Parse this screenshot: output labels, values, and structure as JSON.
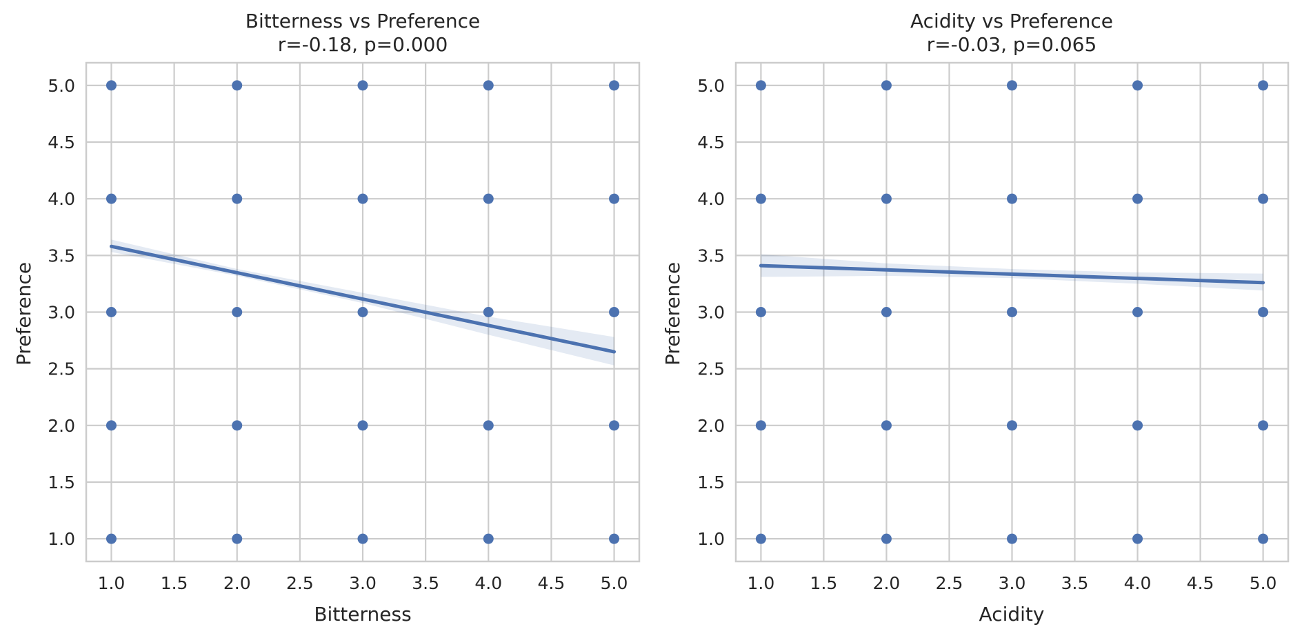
{
  "figure": {
    "panels_count": 2
  },
  "colors": {
    "point": "#4c72b0",
    "line": "#4c72b0",
    "band": "#4c72b0",
    "grid": "#cccccc",
    "text": "#262626",
    "background": "#ffffff"
  },
  "chart_data": [
    {
      "type": "scatter",
      "title": "Bitterness vs Preference",
      "subtitle": "r=-0.18, p=0.000",
      "xlabel": "Bitterness",
      "ylabel": "Preference",
      "xlim": [
        0.8,
        5.2
      ],
      "ylim": [
        0.8,
        5.2
      ],
      "xticks": [
        1.0,
        1.5,
        2.0,
        2.5,
        3.0,
        3.5,
        4.0,
        4.5,
        5.0
      ],
      "yticks": [
        1.0,
        1.5,
        2.0,
        2.5,
        3.0,
        3.5,
        4.0,
        4.5,
        5.0
      ],
      "grid": true,
      "legend": "none",
      "points": [
        [
          1,
          1
        ],
        [
          1,
          2
        ],
        [
          1,
          3
        ],
        [
          1,
          4
        ],
        [
          1,
          5
        ],
        [
          2,
          1
        ],
        [
          2,
          2
        ],
        [
          2,
          3
        ],
        [
          2,
          4
        ],
        [
          2,
          5
        ],
        [
          3,
          1
        ],
        [
          3,
          2
        ],
        [
          3,
          3
        ],
        [
          3,
          4
        ],
        [
          3,
          5
        ],
        [
          4,
          1
        ],
        [
          4,
          2
        ],
        [
          4,
          3
        ],
        [
          4,
          4
        ],
        [
          4,
          5
        ],
        [
          5,
          1
        ],
        [
          5,
          2
        ],
        [
          5,
          3
        ],
        [
          5,
          4
        ],
        [
          5,
          5
        ]
      ],
      "regression": {
        "x": [
          1.0,
          5.0
        ],
        "y": [
          3.58,
          2.65
        ]
      },
      "confidence_band": {
        "x": [
          1.0,
          2.0,
          3.0,
          4.0,
          5.0
        ],
        "lower": [
          3.53,
          3.32,
          3.08,
          2.8,
          2.53
        ],
        "upper": [
          3.64,
          3.38,
          3.17,
          2.96,
          2.78
        ]
      }
    },
    {
      "type": "scatter",
      "title": "Acidity vs Preference",
      "subtitle": "r=-0.03, p=0.065",
      "xlabel": "Acidity",
      "ylabel": "Preference",
      "xlim": [
        0.8,
        5.2
      ],
      "ylim": [
        0.8,
        5.2
      ],
      "xticks": [
        1.0,
        1.5,
        2.0,
        2.5,
        3.0,
        3.5,
        4.0,
        4.5,
        5.0
      ],
      "yticks": [
        1.0,
        1.5,
        2.0,
        2.5,
        3.0,
        3.5,
        4.0,
        4.5,
        5.0
      ],
      "grid": true,
      "legend": "none",
      "points": [
        [
          1,
          1
        ],
        [
          1,
          2
        ],
        [
          1,
          3
        ],
        [
          1,
          4
        ],
        [
          1,
          5
        ],
        [
          2,
          1
        ],
        [
          2,
          2
        ],
        [
          2,
          3
        ],
        [
          2,
          4
        ],
        [
          2,
          5
        ],
        [
          3,
          1
        ],
        [
          3,
          2
        ],
        [
          3,
          3
        ],
        [
          3,
          4
        ],
        [
          3,
          5
        ],
        [
          4,
          1
        ],
        [
          4,
          2
        ],
        [
          4,
          3
        ],
        [
          4,
          4
        ],
        [
          4,
          5
        ],
        [
          5,
          1
        ],
        [
          5,
          2
        ],
        [
          5,
          3
        ],
        [
          5,
          4
        ],
        [
          5,
          5
        ]
      ],
      "regression": {
        "x": [
          1.0,
          5.0
        ],
        "y": [
          3.41,
          3.26
        ]
      },
      "confidence_band": {
        "x": [
          1.0,
          2.0,
          3.0,
          4.0,
          5.0
        ],
        "lower": [
          3.31,
          3.32,
          3.3,
          3.25,
          3.19
        ],
        "upper": [
          3.51,
          3.43,
          3.38,
          3.35,
          3.34
        ]
      }
    }
  ]
}
